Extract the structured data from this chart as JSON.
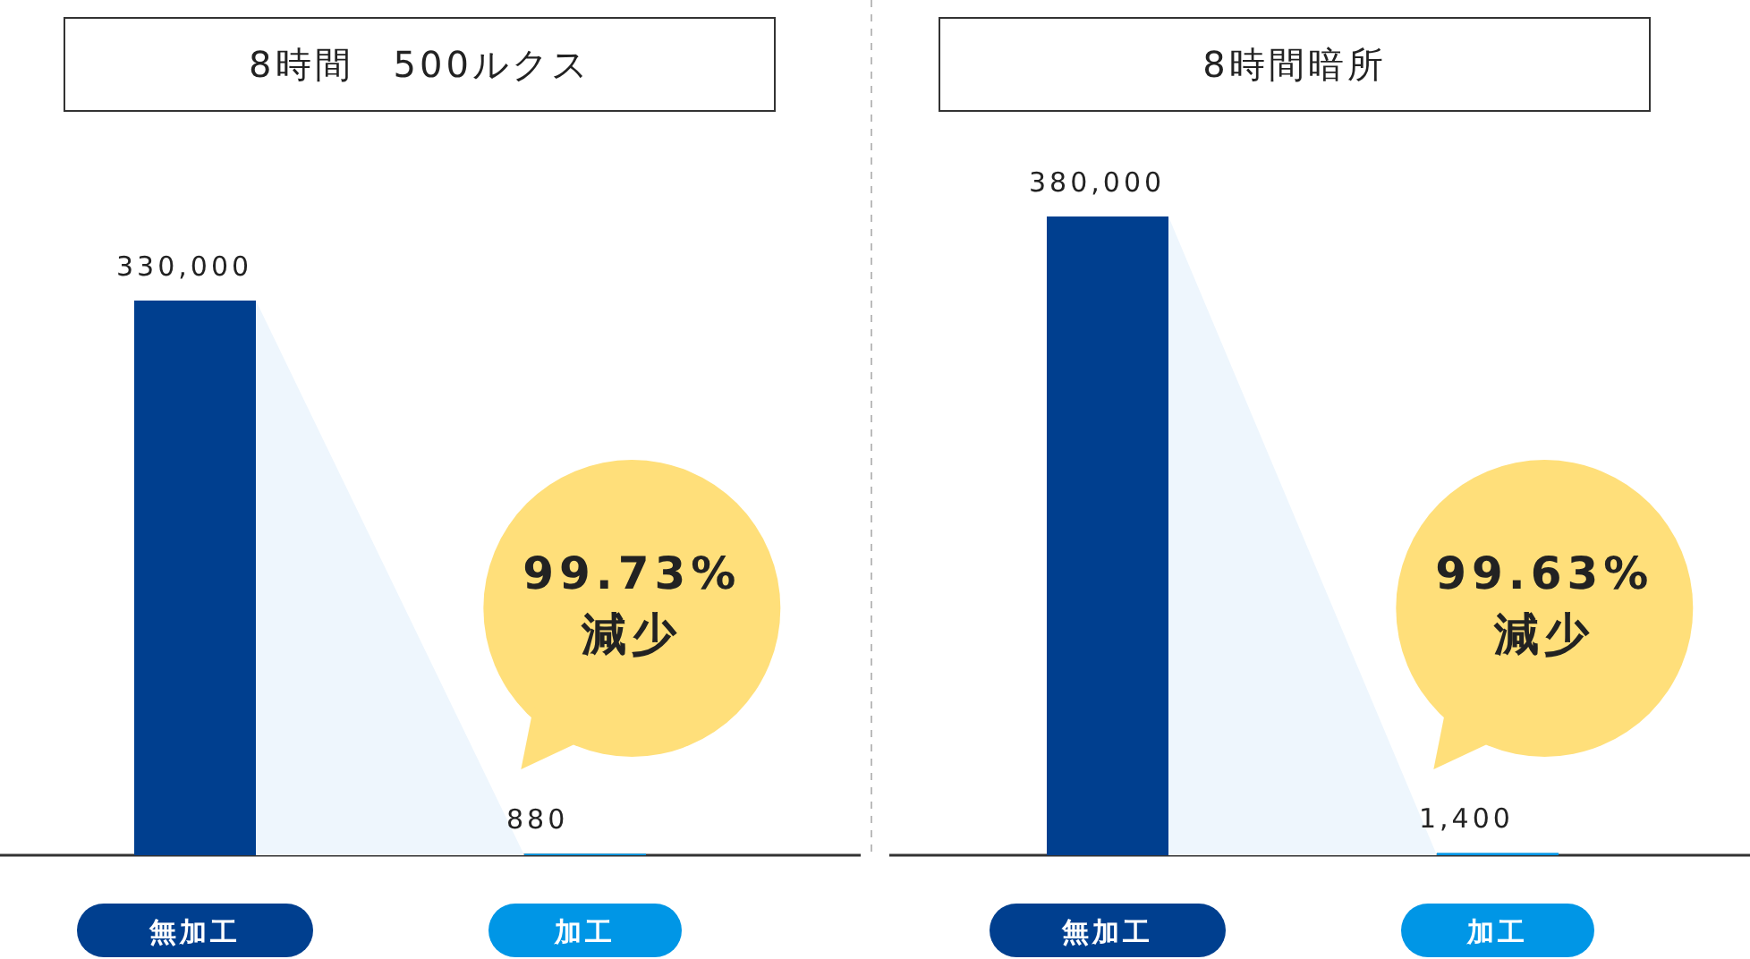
{
  "chart_data": [
    {
      "type": "bar",
      "title": "8時間　500ルクス",
      "categories": [
        "無加工",
        "加工"
      ],
      "values": [
        330000,
        880
      ],
      "value_labels": [
        "330,000",
        "880"
      ],
      "colors": [
        "#003f8f",
        "#0096e6"
      ],
      "annotations": [
        "99.73% 減少"
      ]
    },
    {
      "type": "bar",
      "title": "8時間暗所",
      "categories": [
        "無加工",
        "加工"
      ],
      "values": [
        380000,
        1400
      ],
      "value_labels": [
        "380,000",
        "1,400"
      ],
      "colors": [
        "#003f8f",
        "#0096e6"
      ],
      "annotations": [
        "99.63% 減少"
      ]
    }
  ]
}
